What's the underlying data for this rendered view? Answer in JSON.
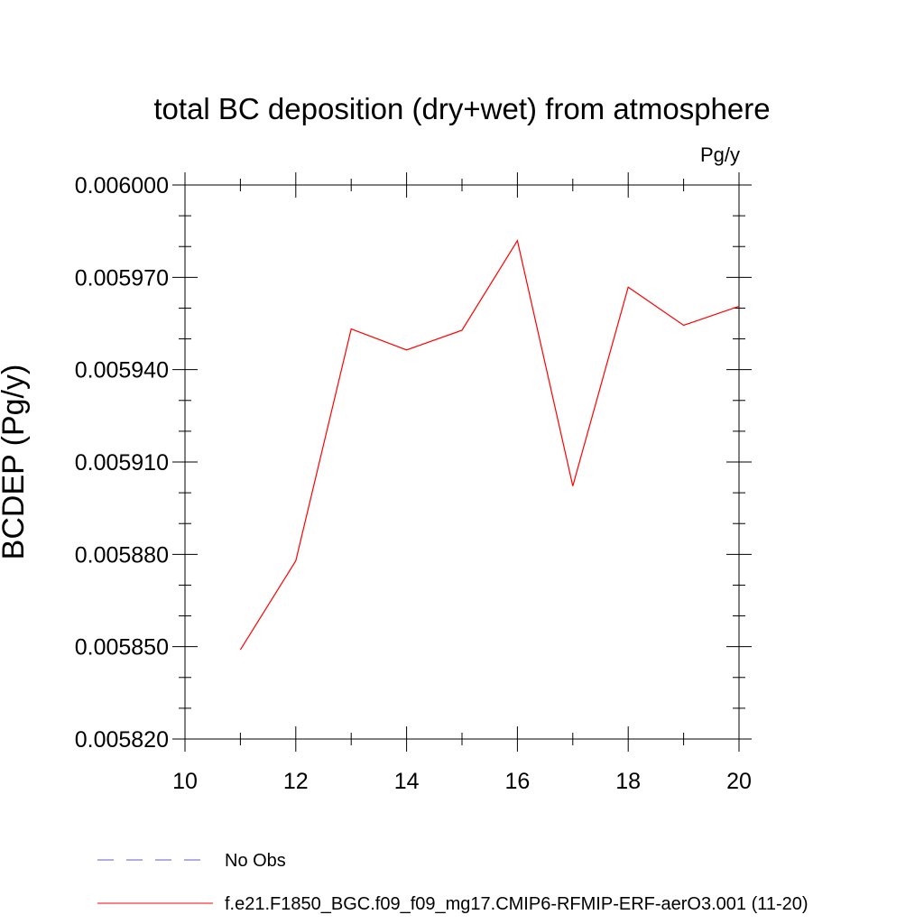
{
  "chart_data": {
    "type": "line",
    "title": "total BC deposition (dry+wet) from atmosphere",
    "units_label": "Pg/y",
    "ylabel": "BCDEP  (Pg/y)",
    "xlabel": "",
    "xlim": [
      10,
      20
    ],
    "ylim": [
      0.00582,
      0.006
    ],
    "x_ticks": [
      10,
      12,
      14,
      16,
      18,
      20
    ],
    "x_tick_labels": [
      "10",
      "12",
      "14",
      "16",
      "18",
      "20"
    ],
    "x_minor_ticks": [
      11,
      13,
      15,
      17,
      19
    ],
    "y_ticks": [
      0.00582,
      0.00585,
      0.00588,
      0.00591,
      0.00594,
      0.00597,
      0.006
    ],
    "y_tick_labels": [
      "0.005820",
      "0.005850",
      "0.005880",
      "0.005910",
      "0.005940",
      "0.005970",
      "0.006000"
    ],
    "y_minor_step": 1e-05,
    "grid": false,
    "legend_position": "bottom",
    "series": [
      {
        "name": "f.e21.F1850_BGC.f09_f09_mg17.CMIP6-RFMIP-ERF-aerO3.001 (11-20)",
        "color": "#ff0000",
        "dash": "solid",
        "x": [
          11,
          12,
          13,
          14,
          15,
          16,
          17,
          18,
          19,
          20
        ],
        "values": [
          0.005849,
          0.0058779,
          0.0059532,
          0.0059464,
          0.0059528,
          0.0059819,
          0.0059022,
          0.0059668,
          0.0059544,
          0.0059606
        ]
      }
    ],
    "legend": [
      {
        "label": "No Obs",
        "color": "#6a5acd",
        "dash": "dashed"
      },
      {
        "label": "f.e21.F1850_BGC.f09_f09_mg17.CMIP6-RFMIP-ERF-aerO3.001 (11-20)",
        "color": "#ff0000",
        "dash": "solid"
      }
    ]
  }
}
